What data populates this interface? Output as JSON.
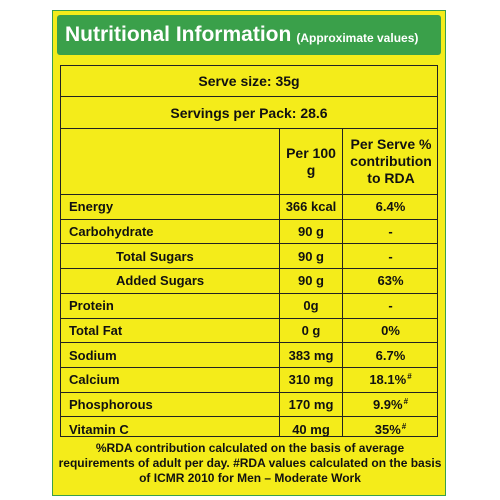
{
  "header": {
    "title": "Nutritional Information",
    "subtitle": "(Approximate values)"
  },
  "serve_size": "Serve size: 35g",
  "servings_per_pack": "Servings per Pack: 28.6",
  "columns": {
    "per100": "Per 100 g",
    "per_serve": "Per Serve % contribution to RDA"
  },
  "rows": [
    {
      "name": "Energy",
      "per100": "366 kcal",
      "rda": "6.4%",
      "mark": ""
    },
    {
      "name": "Carbohydrate",
      "per100": "90 g",
      "rda": "-",
      "mark": ""
    },
    {
      "name": "Total Sugars",
      "per100": "90 g",
      "rda": "-",
      "mark": ""
    },
    {
      "name": "Added Sugars",
      "per100": "90 g",
      "rda": "63%",
      "mark": ""
    },
    {
      "name": "Protein",
      "per100": "0g",
      "rda": "-",
      "mark": ""
    },
    {
      "name": "Total Fat",
      "per100": "0 g",
      "rda": "0%",
      "mark": ""
    },
    {
      "name": "Sodium",
      "per100": "383 mg",
      "rda": "6.7%",
      "mark": ""
    },
    {
      "name": "Calcium",
      "per100": "310 mg",
      "rda": "18.1%",
      "mark": "#"
    },
    {
      "name": "Phosphorous",
      "per100": "170 mg",
      "rda": "9.9%",
      "mark": "#"
    },
    {
      "name": "Vitamin C",
      "per100": "40 mg",
      "rda": "35%",
      "mark": "#"
    }
  ],
  "footnote": "%RDA contribution calculated on the basis of average requirements of adult per day. #RDA values calculated on the basis of ICMR 2010 for Men – Moderate Work",
  "colors": {
    "panel": "#f4ec1a",
    "header": "#3aa04a"
  }
}
